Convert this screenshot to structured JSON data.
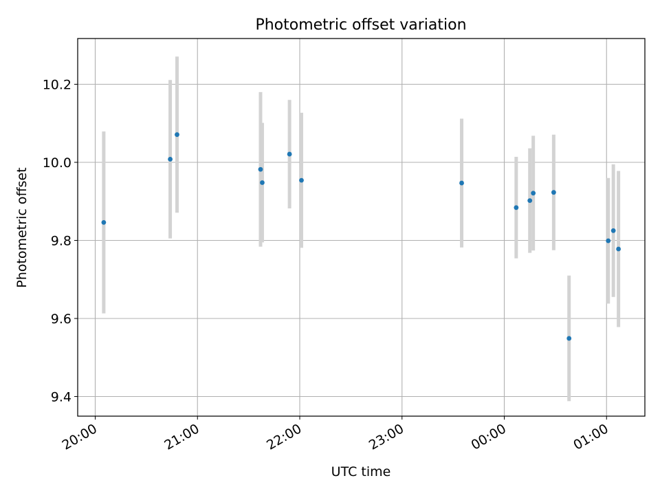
{
  "chart_data": {
    "type": "scatter",
    "title": "Photometric offset variation",
    "xlabel": "UTC time",
    "ylabel": "Photometric offset",
    "x_tick_labels": [
      "20:00",
      "21:00",
      "22:00",
      "23:00",
      "00:00",
      "01:00"
    ],
    "y_tick_labels": [
      "9.4",
      "9.6",
      "9.8",
      "10.0",
      "10.2"
    ],
    "y_ticks": [
      9.4,
      9.6,
      9.8,
      10.0,
      10.2
    ],
    "grid": true,
    "points": [
      {
        "time": "20:05",
        "y": 9.846,
        "err": 0.233
      },
      {
        "time": "20:44",
        "y": 10.008,
        "err": 0.203
      },
      {
        "time": "20:48",
        "y": 10.071,
        "err": 0.2
      },
      {
        "time": "21:37",
        "y": 9.982,
        "err": 0.198
      },
      {
        "time": "21:38",
        "y": 9.948,
        "err": 0.153
      },
      {
        "time": "21:54",
        "y": 10.021,
        "err": 0.139
      },
      {
        "time": "22:01",
        "y": 9.954,
        "err": 0.173
      },
      {
        "time": "23:35",
        "y": 9.947,
        "err": 0.165
      },
      {
        "time": "00:07",
        "y": 9.884,
        "err": 0.13
      },
      {
        "time": "00:15",
        "y": 9.902,
        "err": 0.134
      },
      {
        "time": "00:17",
        "y": 9.921,
        "err": 0.147
      },
      {
        "time": "00:29",
        "y": 9.923,
        "err": 0.148
      },
      {
        "time": "00:38",
        "y": 9.549,
        "err": 0.161
      },
      {
        "time": "01:01",
        "y": 9.799,
        "err": 0.161
      },
      {
        "time": "01:04",
        "y": 9.825,
        "err": 0.17
      },
      {
        "time": "01:07",
        "y": 9.778,
        "err": 0.2
      }
    ],
    "colors": {
      "marker": "#1f77b4",
      "errorbar": "#d3d3d3",
      "grid": "#b0b0b0",
      "axes": "#000000"
    }
  }
}
